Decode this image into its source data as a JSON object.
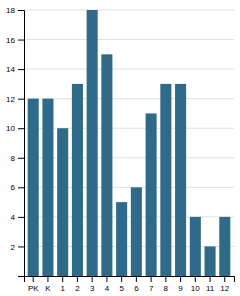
{
  "chart_data": {
    "type": "bar",
    "categories": [
      "PK",
      "K",
      "1",
      "2",
      "3",
      "4",
      "5",
      "6",
      "7",
      "8",
      "9",
      "10",
      "11",
      "12"
    ],
    "values": [
      12,
      12,
      10,
      13,
      18,
      15,
      5,
      6,
      11,
      13,
      13,
      4,
      2,
      4
    ],
    "color": "#2e6b8a",
    "ylim": [
      0,
      18
    ],
    "yticks": [
      2,
      4,
      6,
      8,
      10,
      12,
      14,
      16,
      18
    ],
    "grid": true
  }
}
